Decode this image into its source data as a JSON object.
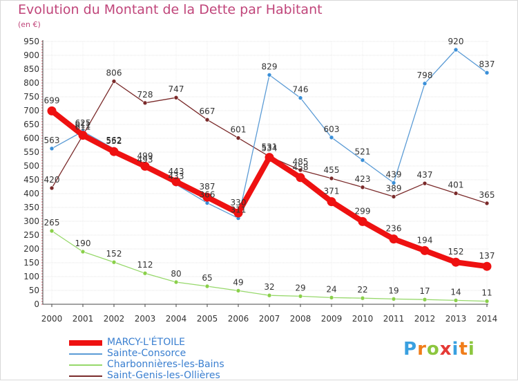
{
  "chart_data": {
    "type": "line",
    "title": "Evolution du Montant de la Dette par Habitant",
    "subtitle": "(en €)",
    "xlabel": "",
    "ylabel": "",
    "ylim": [
      0,
      950
    ],
    "ytick_step": 50,
    "grid": true,
    "x": [
      "2000",
      "2001",
      "2002",
      "2003",
      "2004",
      "2005",
      "2006",
      "2007",
      "2008",
      "2009",
      "2010",
      "2011",
      "2012",
      "2013",
      "2014"
    ],
    "series": [
      {
        "name": "Saint-Genis-les-Ollières",
        "color": "#7a2a2a",
        "point_color": "#7a2a2a",
        "values": [
          420,
          611,
          806,
          728,
          747,
          667,
          601,
          534,
          485,
          455,
          423,
          389,
          437,
          401,
          365
        ]
      },
      {
        "name": "Sainte-Consorce",
        "color": "#5b9bd5",
        "point_color": "#3a8fd8",
        "values": [
          563,
          625,
          562,
          493,
          433,
          366,
          311,
          829,
          746,
          603,
          521,
          439,
          798,
          920,
          837
        ]
      },
      {
        "name": "Charbonnières-les-Bains",
        "color": "#96d86a",
        "point_color": "#8ad04a",
        "values": [
          265,
          190,
          152,
          112,
          80,
          65,
          49,
          32,
          29,
          24,
          22,
          19,
          17,
          14,
          11
        ]
      },
      {
        "name": "MARCY-L'ÉTOILE",
        "color": "#ee1111",
        "point_color": "#ee1111",
        "values": [
          699,
          611,
          552,
          499,
          443,
          387,
          330,
          531,
          458,
          371,
          299,
          236,
          194,
          152,
          137
        ]
      }
    ],
    "legend": [
      "MARCY-L'ÉTOILE",
      "Sainte-Consorce",
      "Charbonnières-les-Bains",
      "Saint-Genis-les-Ollières"
    ],
    "legend_position": "bottom-left"
  },
  "logo": {
    "letters": [
      "P",
      "r",
      "o",
      "x",
      "i",
      "t",
      "i"
    ],
    "colors": [
      "#3aa0e0",
      "#f07d1a",
      "#8cc63e",
      "#e53935",
      "#3aa0e0",
      "#f07d1a",
      "#8cc63e"
    ]
  }
}
